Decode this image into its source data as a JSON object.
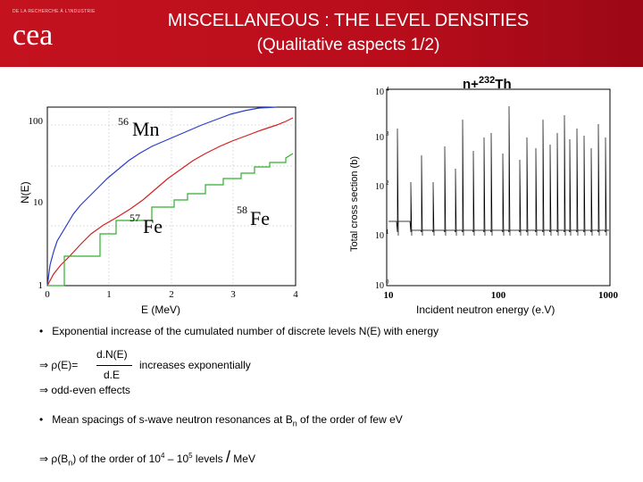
{
  "header": {
    "logo_small_text": "DE LA RECHERCHE À L'INDUSTRIE",
    "logo_text": "cea",
    "title_line1": "MISCELLANEOUS : THE LEVEL DENSITIES",
    "title_line2": "(Qualitative aspects 1/2)"
  },
  "left_plot": {
    "ylabel": "N(E)",
    "xlabel": "E (MeV)",
    "x_ticks": [
      "0",
      "1",
      "2",
      "3",
      "4"
    ],
    "y_ticks": [
      "1",
      "10",
      "100"
    ],
    "labels": {
      "mn56_mass": "56",
      "mn56_sym": "Mn",
      "fe57_mass": "57",
      "fe57_sym": "Fe",
      "fe58_mass": "58",
      "fe58_sym": "Fe"
    },
    "colors": {
      "mn56": "#2a3bd0",
      "fe57": "#d42020",
      "fe58": "#2fb02f"
    }
  },
  "right_plot": {
    "title_prefix": "n+",
    "title_mass": "232",
    "title_sym": "Th",
    "ylabel": "Total cross section (b)",
    "xlabel": "Incident neutron energy (e.V)",
    "x_ticks": [
      "10",
      "100",
      "1000"
    ],
    "y_ticks": [
      "10",
      "10",
      "10",
      "10",
      "10"
    ],
    "y_exps": [
      "0",
      "1",
      "2",
      "3",
      "4"
    ]
  },
  "bullets": {
    "b1": "Exponential increase of the cumulated number of discrete levels N(E) with energy",
    "rho_lhs": "ρ(E)=",
    "frac_num": "d.N(E)",
    "frac_den": "d.E",
    "increases": "increases exponentially",
    "odd_even": "odd-even effects",
    "b2_pre": "Mean spacings of s-wave neutron resonances at B",
    "b2_sub": "n",
    "b2_post": " of the order of few eV",
    "b3_rho": "ρ(B",
    "b3_sub": "n",
    "b3_mid": ") of the order of 10",
    "b3_exp1": "4",
    "b3_dash": " – 10",
    "b3_exp2": "5",
    "b3_levels": " levels ",
    "b3_slash": "/",
    "b3_unit": " MeV"
  },
  "symbols": {
    "bullet": "•",
    "implies": "⇒"
  }
}
